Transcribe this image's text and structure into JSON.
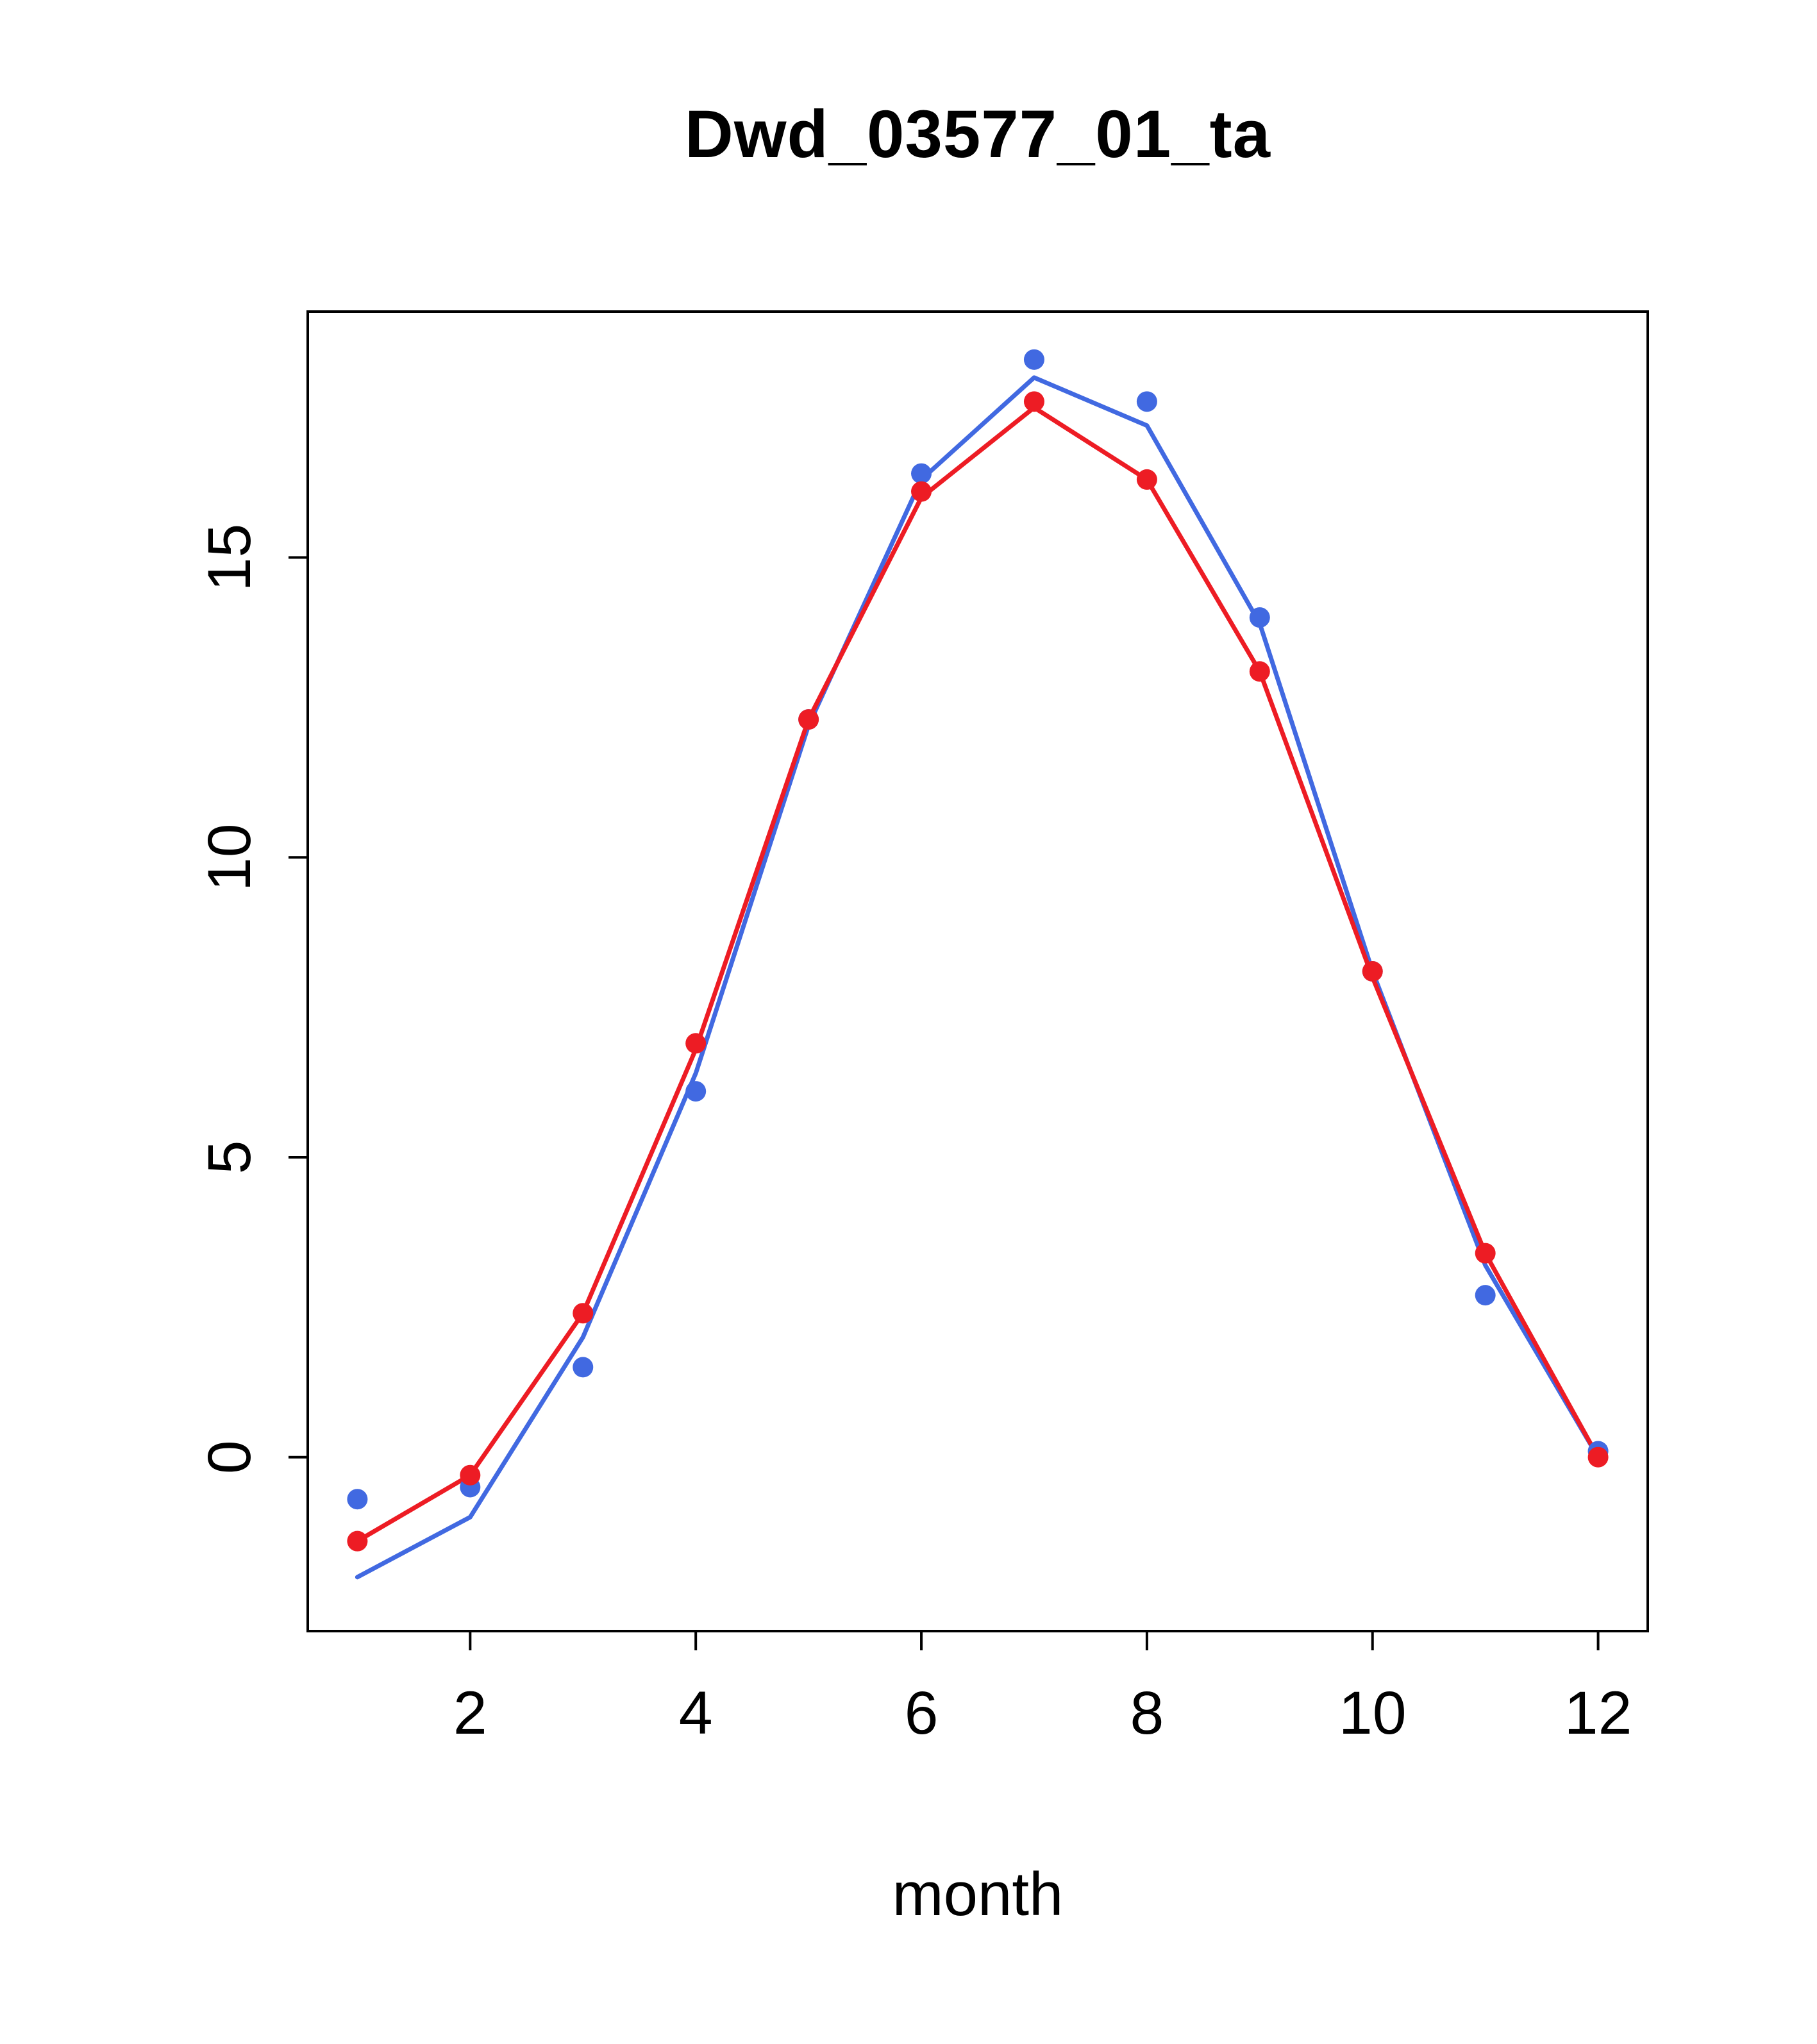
{
  "chart_data": {
    "type": "line",
    "title": "Dwd_03577_01_ta",
    "xlabel": "month",
    "ylabel": "",
    "x": [
      1,
      2,
      3,
      4,
      5,
      6,
      7,
      8,
      9,
      10,
      11,
      12
    ],
    "xticks": [
      2,
      4,
      6,
      8,
      10,
      12
    ],
    "yticks": [
      0,
      5,
      10,
      15
    ],
    "xlim": [
      0.56,
      12.44
    ],
    "ylim": [
      -2.9,
      19.1
    ],
    "grid": false,
    "legend": "none",
    "series": [
      {
        "name": "blue-series",
        "color": "#4169e1",
        "style": "line+points",
        "line_values": [
          -2.0,
          -1.0,
          2.0,
          6.4,
          12.2,
          16.3,
          18.0,
          17.2,
          13.9,
          8.1,
          3.2,
          0.0
        ],
        "point_values": [
          -0.7,
          -0.5,
          1.5,
          6.1,
          12.3,
          16.4,
          18.3,
          17.6,
          14.0,
          8.1,
          2.7,
          0.1
        ]
      },
      {
        "name": "red-series",
        "color": "#ed1c24",
        "style": "line+points",
        "line_values": [
          -1.4,
          -0.3,
          2.4,
          6.8,
          12.3,
          16.0,
          17.5,
          16.3,
          13.1,
          8.0,
          3.4,
          0.0
        ],
        "point_values": [
          -1.4,
          -0.3,
          2.4,
          6.9,
          12.3,
          16.1,
          17.6,
          16.3,
          13.1,
          8.1,
          3.4,
          0.0
        ]
      }
    ],
    "axis_color": "#000000",
    "background_color": "#ffffff"
  }
}
